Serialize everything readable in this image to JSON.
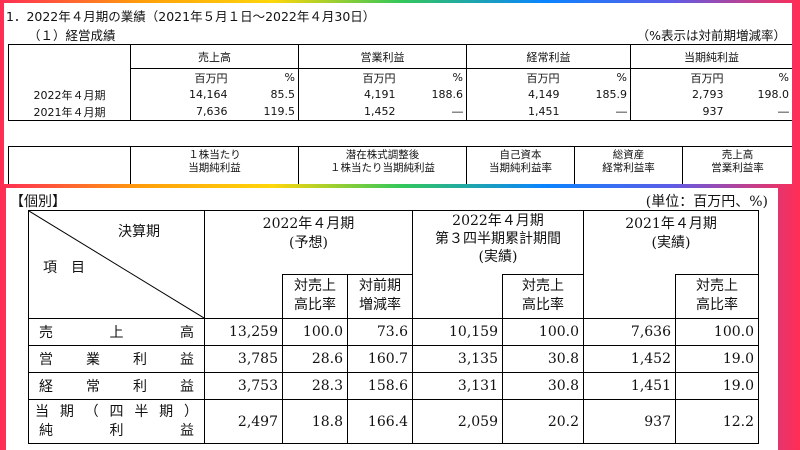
{
  "top": {
    "heading": "1．2022年４月期の業績（2021年５月１日～2022年４月30日）",
    "subheading": "（１）経営成績",
    "note": "（%表示は対前期増減率）",
    "columns": [
      "売上高",
      "営業利益",
      "経常利益",
      "当期純利益"
    ],
    "unit_million": "百万円",
    "unit_pct": "%",
    "rows": [
      {
        "label": "2022年４月期",
        "values": [
          "14,164",
          "85.5",
          "4,191",
          "188.6",
          "4,149",
          "185.9",
          "2,793",
          "198.0"
        ]
      },
      {
        "label": "2021年４月期",
        "values": [
          "7,636",
          "119.5",
          "1,452",
          "―",
          "1,451",
          "―",
          "937",
          "―"
        ]
      }
    ],
    "ratio_headers": [
      {
        "line1": "１株当たり",
        "line2": "当期純利益"
      },
      {
        "line1": "潜在株式調整後",
        "line2": "１株当たり当期純利益"
      },
      {
        "line1": "自己資本",
        "line2": "当期純利益率"
      },
      {
        "line1": "総資産",
        "line2": "経常利益率"
      },
      {
        "line1": "売上高",
        "line2": "営業利益率"
      }
    ]
  },
  "bottom": {
    "title": "【個別】",
    "unit": "(単位：百万円、%)",
    "diag_top": "決算期",
    "diag_bottom": "項　目",
    "col_groups": [
      {
        "line1": "2022年４月期",
        "line2": "(予想)",
        "line3": ""
      },
      {
        "line1": "2022年４月期",
        "line2": "第３四半期累計期間",
        "line3": "(実績)"
      },
      {
        "line1": "2021年４月期",
        "line2": "(実績)",
        "line3": ""
      }
    ],
    "sub_headers": {
      "ratio_sales_1": "対売上",
      "ratio_sales_2": "高比率",
      "yoy_1": "対前期",
      "yoy_2": "増減率"
    },
    "rows": [
      {
        "label_chars": [
          "売",
          "上",
          "高"
        ],
        "values": [
          "13,259",
          "100.0",
          "73.6",
          "10,159",
          "100.0",
          "7,636",
          "100.0"
        ]
      },
      {
        "label_chars": [
          "営",
          "業",
          "利",
          "益"
        ],
        "values": [
          "3,785",
          "28.6",
          "160.7",
          "3,135",
          "30.8",
          "1,452",
          "19.0"
        ]
      },
      {
        "label_chars": [
          "経",
          "常",
          "利",
          "益"
        ],
        "values": [
          "3,753",
          "28.3",
          "158.6",
          "3,131",
          "30.8",
          "1,451",
          "19.0"
        ]
      },
      {
        "label_line1_chars": [
          "当",
          "期",
          "（",
          "四",
          "半",
          "期",
          "）"
        ],
        "label_line2_chars": [
          "純",
          "利",
          "益"
        ],
        "values": [
          "2,497",
          "18.8",
          "166.4",
          "2,059",
          "20.2",
          "937",
          "12.2"
        ]
      }
    ]
  }
}
